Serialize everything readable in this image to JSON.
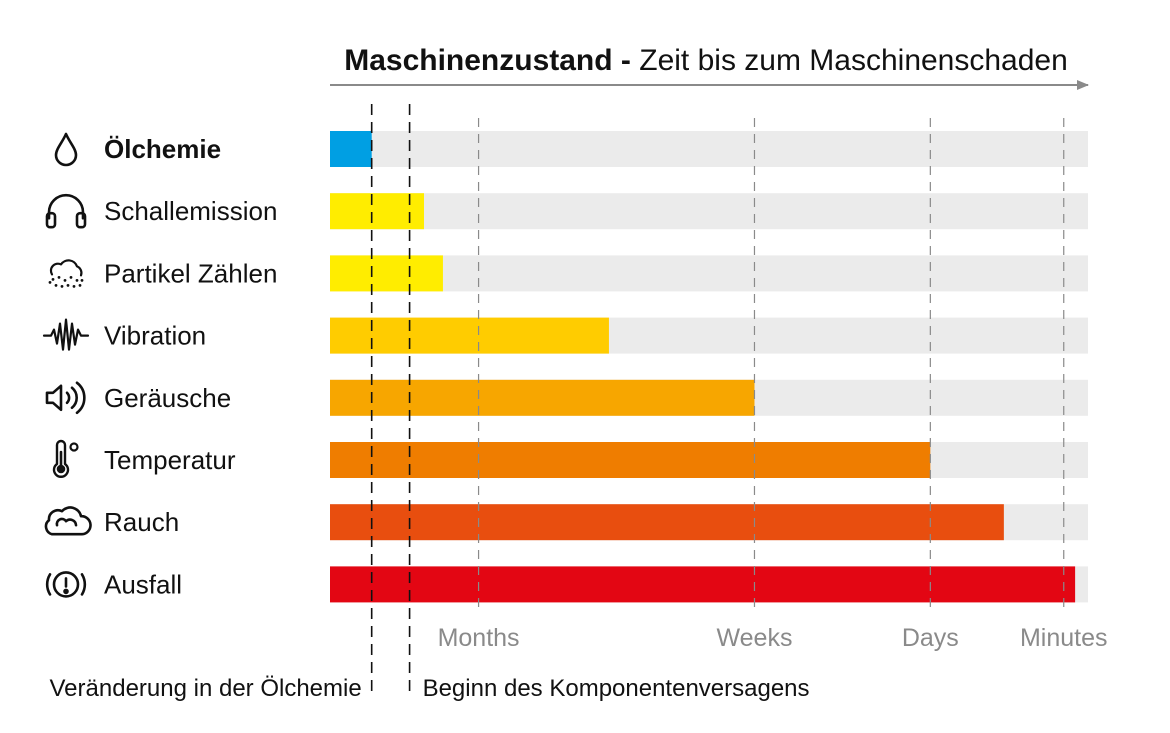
{
  "chart_data": {
    "type": "bar",
    "orientation": "horizontal",
    "title": {
      "bold": "Maschinenzustand -",
      "rest": "Zeit bis zum Maschinenschaden"
    },
    "xaxis": {
      "ticks": [
        {
          "label": "Months",
          "value": 0.196
        },
        {
          "label": "Weeks",
          "value": 0.56
        },
        {
          "label": "Days",
          "value": 0.792
        },
        {
          "label": "Minutes",
          "value": 0.968
        }
      ],
      "range": [
        0,
        1
      ]
    },
    "categories": [
      "Ölchemie",
      "Schallemission",
      "Partikel Zählen",
      "Vibration",
      "Geräusche",
      "Temperatur",
      "Rauch",
      "Ausfall"
    ],
    "icons": [
      "drop-icon",
      "headphones-icon",
      "particles-icon",
      "vibration-icon",
      "speaker-icon",
      "thermometer-icon",
      "cloud-icon",
      "alert-icon"
    ],
    "values": [
      0.055,
      0.124,
      0.149,
      0.368,
      0.56,
      0.792,
      0.889,
      0.983
    ],
    "colors": [
      "#009fe3",
      "#ffed00",
      "#ffed00",
      "#ffcc00",
      "#f7a600",
      "#ef7d00",
      "#e84e0f",
      "#e30613"
    ],
    "track_color": "#ebebeb",
    "highlighted_category": "Ölchemie",
    "markers": [
      {
        "label": "Veränderung in der Ölchemie",
        "value": 0.055
      },
      {
        "label": "Beginn des Komponentenversagens",
        "value": 0.105
      }
    ]
  }
}
